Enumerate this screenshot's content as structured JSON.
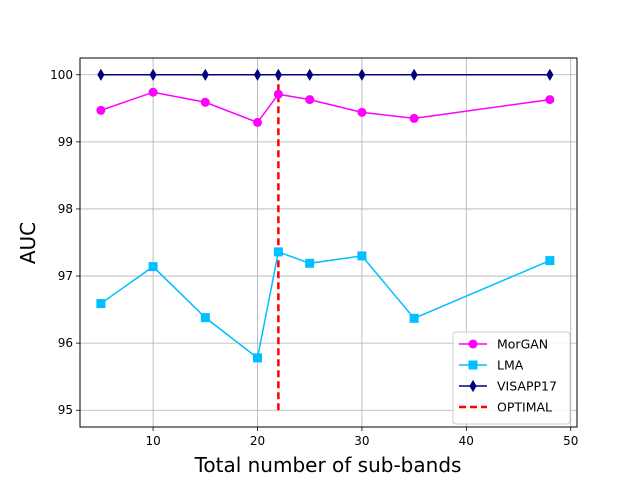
{
  "chart_data": {
    "type": "line",
    "title": "",
    "xlabel": "Total number of sub-bands",
    "ylabel": "AUC",
    "xlim": [
      3.0,
      50.6
    ],
    "ylim": [
      94.75,
      100.25
    ],
    "xticks": [
      10,
      20,
      30,
      40,
      50
    ],
    "yticks": [
      95,
      96,
      97,
      98,
      99,
      100
    ],
    "grid": true,
    "legend_position": "lower-right",
    "x": [
      5,
      10,
      15,
      20,
      22,
      25,
      30,
      35,
      48
    ],
    "series": [
      {
        "name": "MorGAN",
        "color": "#ff00ff",
        "marker": "circle",
        "values": [
          99.47,
          99.74,
          99.59,
          99.29,
          99.71,
          99.63,
          99.44,
          99.35,
          99.63
        ]
      },
      {
        "name": "LMA",
        "color": "#00bfff",
        "marker": "square",
        "values": [
          96.59,
          97.14,
          96.38,
          95.78,
          97.36,
          97.19,
          97.3,
          96.37,
          97.23
        ]
      },
      {
        "name": "VISAPP17",
        "color": "#000080",
        "marker": "diamond",
        "values": [
          100,
          100,
          100,
          100,
          100,
          100,
          100,
          100,
          100
        ]
      }
    ],
    "reference_lines": [
      {
        "name": "OPTIMAL",
        "color": "#ff0000",
        "style": "dashed",
        "x": 22,
        "y_from": 95,
        "y_to": 100
      }
    ]
  }
}
